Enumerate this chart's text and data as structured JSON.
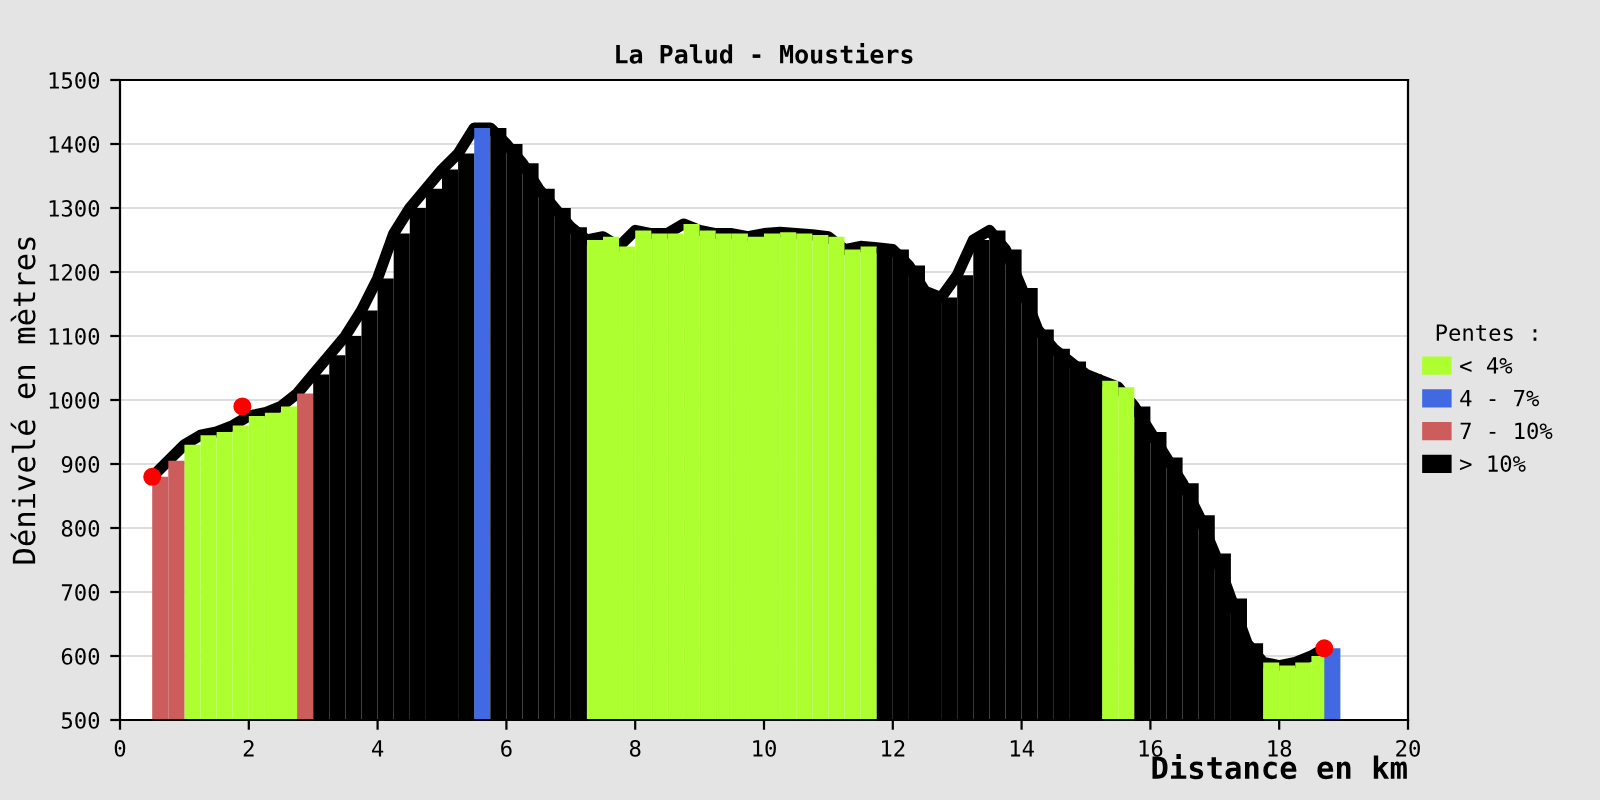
{
  "chart_data": {
    "type": "bar",
    "title": "La Palud - Moustiers",
    "xlabel": "Distance en km",
    "ylabel": "Dénivelé en mètres",
    "legend_title": "Pentes :",
    "x": [
      0.5,
      0.75,
      1.0,
      1.25,
      1.5,
      1.75,
      2.0,
      2.25,
      2.5,
      2.75,
      3.0,
      3.25,
      3.5,
      3.75,
      4.0,
      4.25,
      4.5,
      4.75,
      5.0,
      5.25,
      5.5,
      5.75,
      6.0,
      6.25,
      6.5,
      6.75,
      7.0,
      7.25,
      7.5,
      7.75,
      8.0,
      8.25,
      8.5,
      8.75,
      9.0,
      9.25,
      9.5,
      9.75,
      10.0,
      10.25,
      10.5,
      10.75,
      11.0,
      11.25,
      11.5,
      11.75,
      12.0,
      12.25,
      12.5,
      12.75,
      13.0,
      13.25,
      13.5,
      13.75,
      14.0,
      14.25,
      14.5,
      14.75,
      15.0,
      15.25,
      15.5,
      15.75,
      16.0,
      16.25,
      16.5,
      16.75,
      17.0,
      17.25,
      17.5,
      17.75,
      18.0,
      18.25,
      18.5,
      18.7
    ],
    "series": [
      {
        "name": "< 4%",
        "color": "#adff2f",
        "values": [
          null,
          null,
          930,
          945,
          950,
          960,
          975,
          980,
          990,
          null,
          null,
          null,
          null,
          null,
          null,
          null,
          null,
          null,
          null,
          null,
          null,
          null,
          null,
          null,
          null,
          null,
          null,
          1250,
          1255,
          1240,
          1265,
          1260,
          1260,
          1275,
          1265,
          1260,
          1260,
          1255,
          1260,
          1262,
          1260,
          1258,
          1255,
          1235,
          1240,
          null,
          null,
          null,
          null,
          null,
          null,
          null,
          null,
          null,
          null,
          null,
          null,
          null,
          null,
          1030,
          1020,
          null,
          null,
          null,
          null,
          null,
          null,
          null,
          null,
          590,
          585,
          590,
          600,
          null
        ]
      },
      {
        "name": "4 - 7%",
        "color": "#4169e1",
        "values": [
          null,
          null,
          null,
          null,
          null,
          null,
          null,
          null,
          null,
          null,
          null,
          null,
          null,
          null,
          null,
          null,
          null,
          null,
          null,
          null,
          1425,
          null,
          null,
          null,
          null,
          null,
          null,
          null,
          null,
          null,
          null,
          null,
          null,
          null,
          null,
          null,
          null,
          null,
          null,
          null,
          null,
          null,
          null,
          null,
          null,
          null,
          null,
          null,
          null,
          null,
          null,
          null,
          null,
          null,
          null,
          null,
          null,
          null,
          null,
          null,
          null,
          null,
          null,
          null,
          null,
          null,
          null,
          null,
          null,
          null,
          null,
          null,
          null,
          612
        ]
      },
      {
        "name": "7 - 10%",
        "color": "#cd5c5c",
        "values": [
          880,
          905,
          null,
          null,
          null,
          null,
          null,
          null,
          null,
          1010,
          null,
          null,
          null,
          null,
          null,
          null,
          null,
          null,
          null,
          null,
          null,
          null,
          null,
          null,
          null,
          null,
          null,
          null,
          null,
          null,
          null,
          null,
          null,
          null,
          null,
          null,
          null,
          null,
          null,
          null,
          null,
          null,
          null,
          null,
          null,
          null,
          null,
          null,
          null,
          null,
          null,
          null,
          null,
          null,
          null,
          null,
          null,
          null,
          null,
          null,
          null,
          null,
          null,
          null,
          null,
          null,
          null,
          null,
          null,
          null,
          null,
          null,
          null,
          null
        ]
      },
      {
        "name": "> 10%",
        "color": "#000000",
        "values": [
          null,
          null,
          null,
          null,
          null,
          null,
          null,
          null,
          null,
          null,
          1040,
          1070,
          1100,
          1140,
          1190,
          1260,
          1300,
          1330,
          1360,
          1385,
          null,
          1425,
          1400,
          1370,
          1330,
          1300,
          1270,
          null,
          null,
          null,
          null,
          null,
          null,
          null,
          null,
          null,
          null,
          null,
          null,
          null,
          null,
          null,
          null,
          null,
          null,
          1238,
          1235,
          1210,
          1170,
          1160,
          1195,
          1250,
          1265,
          1235,
          1175,
          1110,
          1080,
          1060,
          1040,
          null,
          null,
          990,
          950,
          910,
          870,
          820,
          760,
          690,
          620,
          null,
          null,
          null,
          null,
          null
        ]
      },
      {
        "type": "line",
        "color": "#000000",
        "values": [
          880,
          905,
          930,
          945,
          950,
          960,
          975,
          980,
          990,
          1010,
          1040,
          1070,
          1100,
          1140,
          1190,
          1260,
          1300,
          1330,
          1360,
          1385,
          1425,
          1425,
          1400,
          1370,
          1330,
          1300,
          1270,
          1250,
          1255,
          1240,
          1265,
          1260,
          1260,
          1275,
          1265,
          1260,
          1260,
          1255,
          1260,
          1262,
          1260,
          1258,
          1255,
          1235,
          1240,
          1238,
          1235,
          1210,
          1170,
          1160,
          1195,
          1250,
          1265,
          1235,
          1175,
          1110,
          1080,
          1060,
          1040,
          1030,
          1020,
          990,
          950,
          910,
          870,
          820,
          760,
          690,
          620,
          590,
          585,
          590,
          600,
          612
        ]
      },
      {
        "type": "scatter",
        "color": "#ff0000",
        "x": [
          0.5,
          1.9,
          18.7
        ],
        "values": [
          880,
          990,
          612
        ]
      }
    ],
    "xlim": [
      0,
      20
    ],
    "xticks": [
      0,
      2,
      4,
      6,
      8,
      10,
      12,
      14,
      16,
      18,
      20
    ],
    "ylim": [
      500,
      1500
    ],
    "yticks": [
      500,
      600,
      700,
      800,
      900,
      1000,
      1100,
      1200,
      1300,
      1400,
      1500
    ],
    "grid": "y",
    "legend": "right"
  }
}
